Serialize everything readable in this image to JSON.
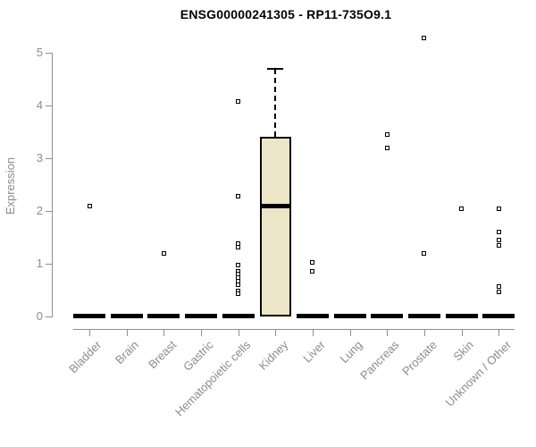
{
  "title": "ENSG00000241305 - RP11-735O9.1",
  "chart_data": {
    "type": "box",
    "title": "ENSG00000241305 - RP11-735O9.1",
    "ylabel": "Expression",
    "xlabel": "",
    "ylim": [
      0,
      5
    ],
    "yticks": [
      0,
      1,
      2,
      3,
      4,
      5
    ],
    "grid": false,
    "legend": "none",
    "categories": [
      "Bladder",
      "Brain",
      "Breast",
      "Gastric",
      "Hematopoietic cells",
      "Kidney",
      "Liver",
      "Lung",
      "Pancreas",
      "Prostate",
      "Skin",
      "Unknown / Other"
    ],
    "series": [
      {
        "category": "Bladder",
        "q1": 0,
        "median": 0,
        "q3": 0,
        "whisker_low": 0,
        "whisker_high": 0,
        "outliers": [
          2.1
        ]
      },
      {
        "category": "Brain",
        "q1": 0,
        "median": 0,
        "q3": 0,
        "whisker_low": 0,
        "whisker_high": 0,
        "outliers": []
      },
      {
        "category": "Breast",
        "q1": 0,
        "median": 0,
        "q3": 0,
        "whisker_low": 0,
        "whisker_high": 0,
        "outliers": [
          1.2
        ]
      },
      {
        "category": "Gastric",
        "q1": 0,
        "median": 0,
        "q3": 0,
        "whisker_low": 0,
        "whisker_high": 0,
        "outliers": []
      },
      {
        "category": "Hematopoietic cells",
        "q1": 0,
        "median": 0,
        "q3": 0,
        "whisker_low": 0,
        "whisker_high": 0,
        "outliers": [
          4.08,
          2.28,
          1.38,
          1.31,
          0.97,
          0.86,
          0.8,
          0.74,
          0.67,
          0.6,
          0.49,
          0.43
        ]
      },
      {
        "category": "Kidney",
        "q1": 0,
        "median": 2.1,
        "q3": 3.4,
        "whisker_low": 0,
        "whisker_high": 4.7,
        "outliers": []
      },
      {
        "category": "Liver",
        "q1": 0,
        "median": 0,
        "q3": 0,
        "whisker_low": 0,
        "whisker_high": 0,
        "outliers": [
          1.03,
          0.85
        ]
      },
      {
        "category": "Lung",
        "q1": 0,
        "median": 0,
        "q3": 0,
        "whisker_low": 0,
        "whisker_high": 0,
        "outliers": []
      },
      {
        "category": "Pancreas",
        "q1": 0,
        "median": 0,
        "q3": 0,
        "whisker_low": 0,
        "whisker_high": 0,
        "outliers": [
          3.45,
          3.2
        ]
      },
      {
        "category": "Prostate",
        "q1": 0,
        "median": 0,
        "q3": 0,
        "whisker_low": 0,
        "whisker_high": 0,
        "outliers": [
          5.28,
          1.2
        ]
      },
      {
        "category": "Skin",
        "q1": 0,
        "median": 0,
        "q3": 0,
        "whisker_low": 0,
        "whisker_high": 0,
        "outliers": [
          2.05
        ]
      },
      {
        "category": "Unknown / Other",
        "q1": 0,
        "median": 0,
        "q3": 0,
        "whisker_low": 0,
        "whisker_high": 0,
        "outliers": [
          2.05,
          1.6,
          1.45,
          1.35,
          0.57,
          0.47
        ]
      }
    ],
    "colors": {
      "box_fill": "#ece5c8",
      "box_border": "#000000",
      "median": "#000000",
      "point": "#000000",
      "axis": "#8f8f8f",
      "tick_label": "#8c8c8c",
      "title": "#000000"
    }
  }
}
